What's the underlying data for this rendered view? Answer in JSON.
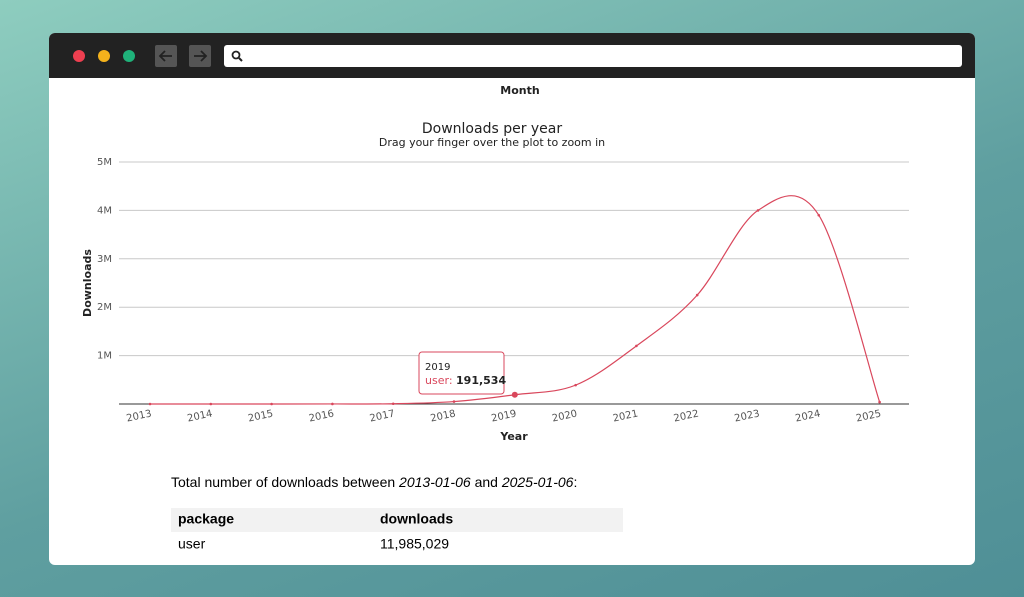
{
  "page_title": "Month",
  "chart_data": {
    "type": "line",
    "title": "Downloads per year",
    "subtitle": "Drag your finger over the plot to zoom in",
    "x_label": "Year",
    "y_label": "Downloads",
    "categories": [
      "2013",
      "2014",
      "2015",
      "2016",
      "2017",
      "2018",
      "2019",
      "2020",
      "2021",
      "2022",
      "2023",
      "2024",
      "2025"
    ],
    "series": [
      {
        "name": "user",
        "color": "#d9475c",
        "values": [
          0,
          0,
          0,
          1000,
          5000,
          50000,
          191534,
          390000,
          1200000,
          2250000,
          4000000,
          3900000,
          40000
        ],
        "value_labels": [
          null,
          null,
          null,
          null,
          null,
          null,
          "191,534",
          null,
          null,
          null,
          null,
          null,
          null
        ]
      }
    ],
    "ylim": [
      0,
      5000000
    ],
    "yticks": [
      {
        "value": 1000000,
        "label": "1M"
      },
      {
        "value": 2000000,
        "label": "2M"
      },
      {
        "value": 3000000,
        "label": "3M"
      },
      {
        "value": 4000000,
        "label": "4M"
      },
      {
        "value": 5000000,
        "label": "5M"
      }
    ],
    "grid": true
  },
  "summary": {
    "prefix": "Total number of downloads between",
    "start": "2013-01-06",
    "middle": "and",
    "end": "2025-01-06",
    "suffix": ":"
  },
  "table": {
    "header": [
      "package",
      "downloads"
    ],
    "rows": [
      [
        "user",
        "11,985,029"
      ]
    ]
  }
}
